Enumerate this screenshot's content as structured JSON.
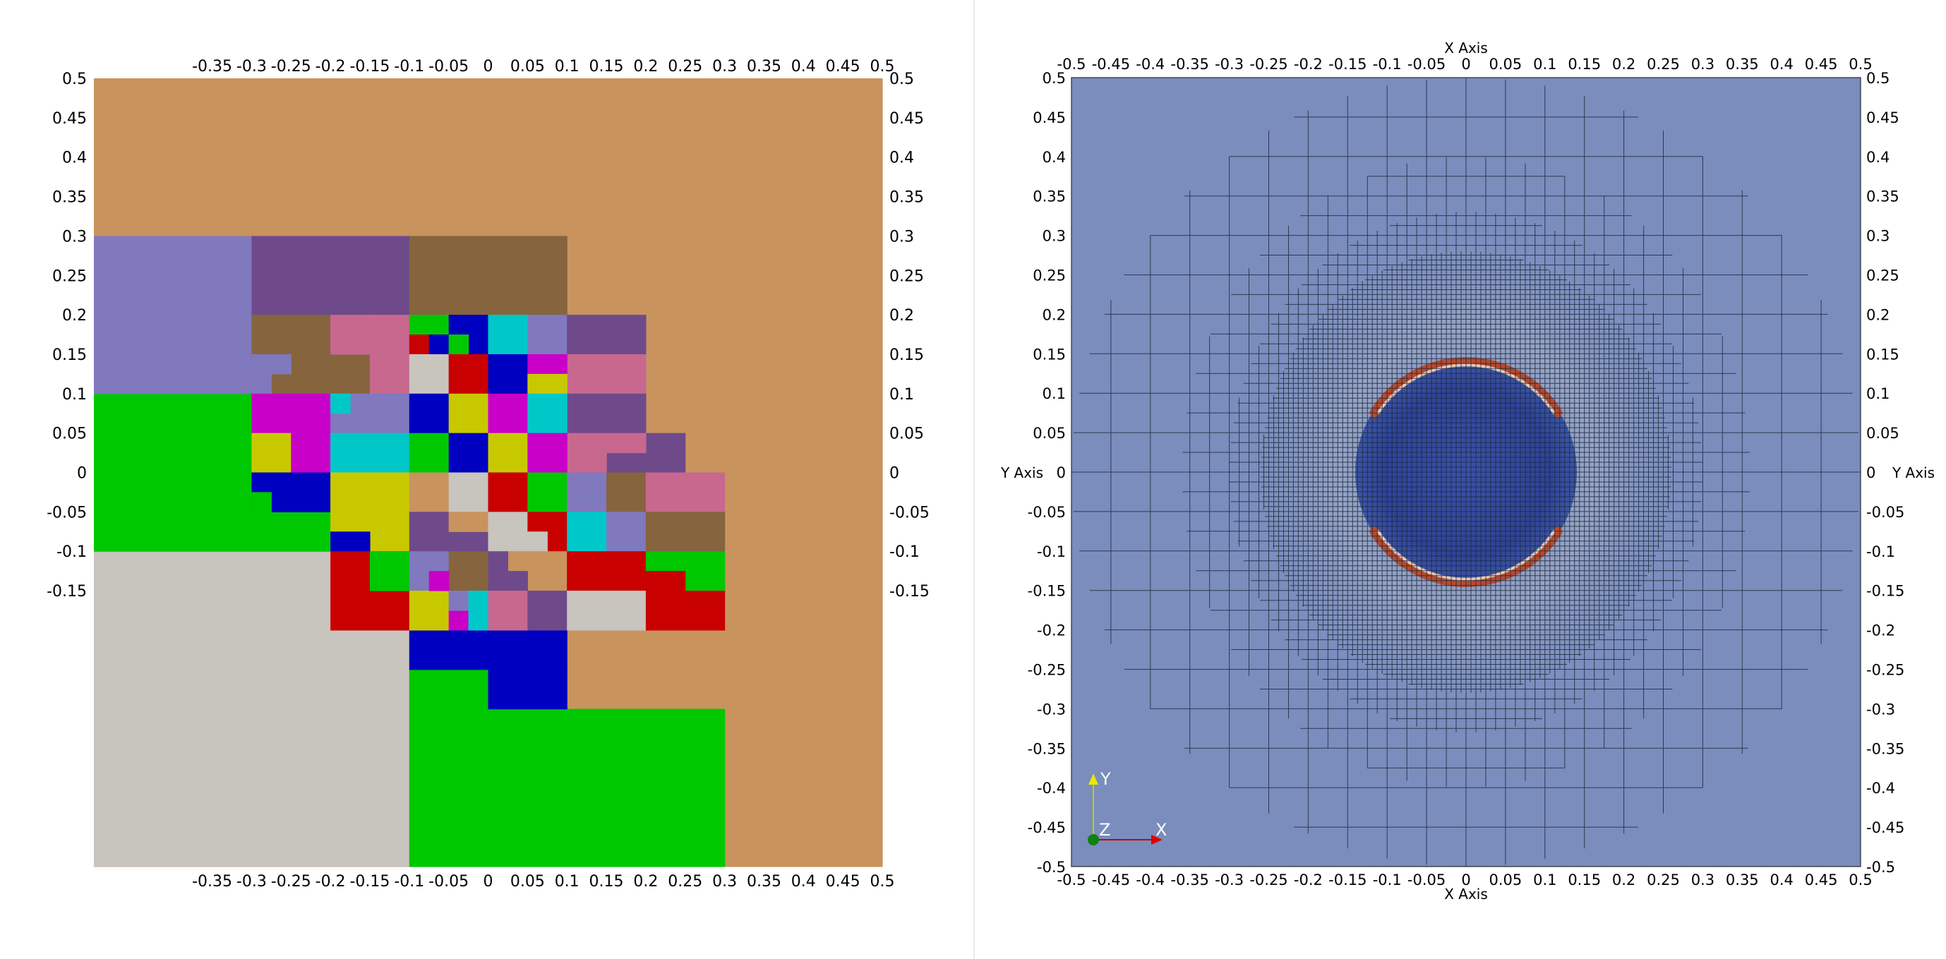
{
  "left_view": {
    "x_ticks": [
      "-0.35",
      "-0.3",
      "-0.25",
      "-0.2",
      "-0.15",
      "-0.1",
      "-0.05",
      "0",
      "0.05",
      "0.1",
      "0.15",
      "0.2",
      "0.25",
      "0.3",
      "0.35",
      "0.4",
      "0.45",
      "0.5"
    ],
    "y_ticks": [
      "0.5",
      "0.45",
      "0.4",
      "0.35",
      "0.3",
      "0.25",
      "0.2",
      "0.15",
      "0.1",
      "0.05",
      "0",
      "-0.05",
      "-0.1",
      "-0.15"
    ],
    "colors": {
      "tan": "#C9935E",
      "periwinkle": "#8079BD",
      "purple": "#6E4A8B",
      "brown": "#86643E",
      "pink": "#C8688F",
      "green": "#00C800",
      "blue": "#0000C0",
      "cyan": "#00C8C8",
      "magenta": "#C800C8",
      "yellow": "#C8C800",
      "red": "#C80000",
      "light_gray": "#C8C4BE"
    }
  },
  "right_view": {
    "x_axis_label": "X Axis",
    "y_axis_label": "Y Axis",
    "ticks": [
      "-0.5",
      "-0.45",
      "-0.4",
      "-0.35",
      "-0.3",
      "-0.25",
      "-0.2",
      "-0.15",
      "-0.1",
      "-0.05",
      "0",
      "0.05",
      "0.1",
      "0.15",
      "0.2",
      "0.25",
      "0.3",
      "0.35",
      "0.4",
      "0.45",
      "0.5"
    ],
    "background_color": "#7A8DBD",
    "orientation": {
      "y_label": "Y",
      "x_label": "X",
      "z_label": "Z"
    }
  }
}
